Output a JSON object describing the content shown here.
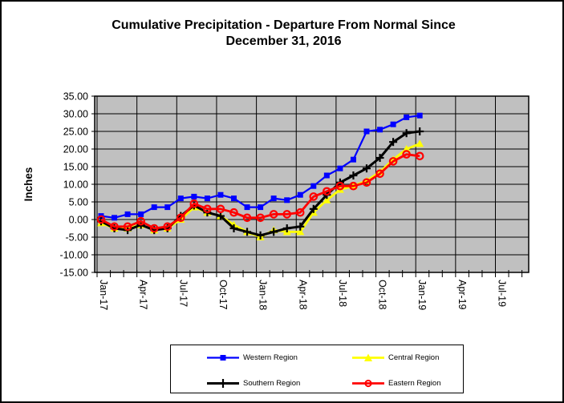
{
  "title": {
    "line1": "Cumulative Precipitation - Departure From Normal Since",
    "line2": "December 31, 2016"
  },
  "y_axis": {
    "label": "Inches",
    "min": -15,
    "max": 35,
    "step": 5,
    "tick_decimals": 2
  },
  "x_axis": {
    "tick_labels": [
      "Jan-17",
      "Apr-17",
      "Jul-17",
      "Oct-17",
      "Jan-18",
      "Apr-18",
      "Jul-18",
      "Oct-18",
      "Jan-19",
      "Apr-19",
      "Jul-19"
    ],
    "months_per_tick": 3
  },
  "chart_data": {
    "type": "line",
    "title": "Cumulative Precipitation - Departure From Normal Since December 31, 2016",
    "ylabel": "Inches",
    "xlabel": "",
    "ylim": [
      -15,
      35
    ],
    "ystep": 5,
    "grid": true,
    "plot_bg": "#C0C0C0",
    "legend_position": "bottom",
    "categories": [
      "Jan-17",
      "Feb-17",
      "Mar-17",
      "Apr-17",
      "May-17",
      "Jun-17",
      "Jul-17",
      "Aug-17",
      "Sep-17",
      "Oct-17",
      "Nov-17",
      "Dec-17",
      "Jan-18",
      "Feb-18",
      "Mar-18",
      "Apr-18",
      "May-18",
      "Jun-18",
      "Jul-18",
      "Aug-18",
      "Sep-18",
      "Oct-18",
      "Nov-18",
      "Dec-18",
      "Jan-19"
    ],
    "series": [
      {
        "name": "Western Region",
        "color": "#0000FF",
        "marker": "square",
        "values": [
          1.0,
          0.5,
          1.5,
          1.5,
          3.5,
          3.5,
          6.0,
          6.5,
          6.0,
          7.0,
          6.0,
          3.5,
          3.5,
          6.0,
          5.5,
          7.0,
          9.5,
          12.5,
          14.5,
          17.0,
          25.0,
          25.5,
          27.0,
          29.0,
          29.5
        ]
      },
      {
        "name": "Central Region",
        "color": "#FFFF00",
        "marker": "triangle",
        "values": [
          -1.0,
          -2.5,
          -2.5,
          -1.5,
          -3.0,
          -2.5,
          0.0,
          3.5,
          2.0,
          1.0,
          -1.5,
          -3.5,
          -5.0,
          -3.0,
          -3.5,
          -3.5,
          2.0,
          5.5,
          8.5,
          9.5,
          11.0,
          13.5,
          17.0,
          20.0,
          21.5
        ]
      },
      {
        "name": "Southern Region",
        "color": "#000000",
        "marker": "plus",
        "values": [
          -0.5,
          -2.5,
          -3.0,
          -1.5,
          -3.0,
          -2.5,
          1.0,
          4.0,
          2.0,
          1.0,
          -2.5,
          -3.5,
          -4.5,
          -3.5,
          -2.5,
          -2.0,
          3.0,
          7.0,
          10.5,
          12.5,
          14.5,
          17.5,
          22.0,
          24.5,
          25.0
        ]
      },
      {
        "name": "Eastern Region",
        "color": "#FF0000",
        "marker": "circle",
        "values": [
          0.0,
          -2.0,
          -2.0,
          -0.5,
          -2.5,
          -2.0,
          0.5,
          4.5,
          3.0,
          3.0,
          2.0,
          0.5,
          0.5,
          1.5,
          1.5,
          2.0,
          6.5,
          8.0,
          9.5,
          9.5,
          10.5,
          13.0,
          16.5,
          18.5,
          18.0
        ]
      }
    ]
  },
  "legend": {
    "items": [
      {
        "label": "Western Region"
      },
      {
        "label": "Central Region"
      },
      {
        "label": "Southern Region"
      },
      {
        "label": "Eastern Region"
      }
    ]
  }
}
